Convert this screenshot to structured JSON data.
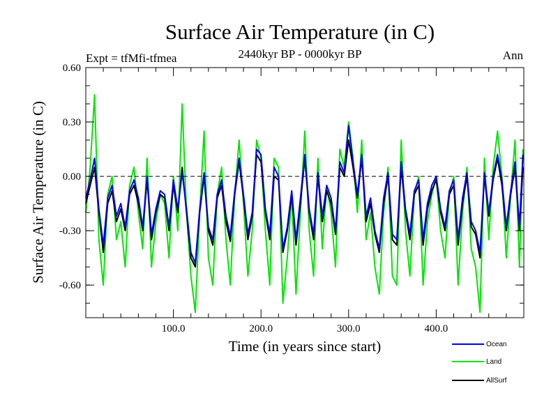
{
  "chart_data": {
    "type": "line",
    "title": "Surface Air Temperature (in C)",
    "subtitle": "2440kyr BP - 0000kyr BP",
    "left_note": "Expt = tfMfi-tfmea",
    "right_note": "Ann",
    "xlabel": "Time (in years since start)",
    "ylabel": "Surface Air Temperature (in C)",
    "xlim": [
      0,
      500
    ],
    "ylim": [
      -0.78,
      0.6
    ],
    "x_ticks": [
      100,
      200,
      300,
      400
    ],
    "x_tick_labels": [
      "100.0",
      "200.0",
      "300.0",
      "400.0"
    ],
    "y_ticks": [
      0.6,
      0.3,
      0.0,
      -0.3,
      -0.6
    ],
    "y_tick_labels": [
      "0.60",
      "0.30",
      "0.00",
      "-0.30",
      "-0.60"
    ],
    "reference_line": 0.0,
    "legend": [
      "Ocean",
      "Land",
      "AllSurf"
    ],
    "colors": {
      "Ocean": "#0000e6",
      "Land": "#00e600",
      "AllSurf": "#000000"
    },
    "series": [
      {
        "name": "Land",
        "x": [
          0,
          5,
          10,
          15,
          20,
          25,
          30,
          35,
          40,
          45,
          50,
          55,
          60,
          65,
          70,
          75,
          80,
          85,
          90,
          95,
          100,
          105,
          110,
          115,
          120,
          125,
          130,
          135,
          140,
          145,
          150,
          155,
          160,
          165,
          170,
          175,
          180,
          185,
          190,
          195,
          200,
          205,
          210,
          215,
          220,
          225,
          230,
          235,
          240,
          245,
          250,
          255,
          260,
          265,
          270,
          275,
          280,
          285,
          290,
          295,
          300,
          305,
          310,
          315,
          320,
          325,
          330,
          335,
          340,
          345,
          350,
          355,
          360,
          365,
          370,
          375,
          380,
          385,
          390,
          395,
          400,
          405,
          410,
          415,
          420,
          425,
          430,
          435,
          440,
          445,
          450,
          455,
          460,
          465,
          470,
          475,
          480,
          485,
          490,
          495,
          499
        ],
        "values": [
          -0.2,
          0.05,
          0.45,
          -0.35,
          -0.6,
          -0.1,
          0.0,
          -0.35,
          -0.25,
          -0.5,
          -0.05,
          0.05,
          -0.2,
          -0.4,
          0.1,
          -0.5,
          -0.25,
          -0.1,
          -0.15,
          -0.45,
          0.0,
          -0.3,
          0.4,
          -0.2,
          -0.55,
          -0.75,
          -0.2,
          0.25,
          -0.45,
          -0.6,
          -0.1,
          0.05,
          -0.35,
          -0.6,
          -0.1,
          0.2,
          -0.15,
          -0.55,
          -0.3,
          0.2,
          0.1,
          -0.3,
          -0.6,
          0.1,
          0.05,
          -0.7,
          -0.45,
          -0.1,
          -0.65,
          -0.2,
          0.25,
          -0.3,
          -0.55,
          0.1,
          -0.4,
          -0.05,
          -0.2,
          -0.5,
          0.15,
          0.05,
          0.3,
          0.1,
          -0.2,
          0.2,
          -0.35,
          -0.2,
          -0.5,
          -0.65,
          -0.2,
          0.05,
          -0.55,
          -0.6,
          0.2,
          -0.3,
          -0.55,
          -0.1,
          0.0,
          -0.6,
          -0.25,
          -0.1,
          0.0,
          -0.3,
          -0.45,
          -0.1,
          0.0,
          -0.6,
          -0.2,
          0.05,
          -0.4,
          -0.5,
          -0.75,
          0.1,
          -0.35,
          0.05,
          0.25,
          0.0,
          -0.45,
          -0.1,
          0.2,
          -0.5,
          0.15
        ]
      },
      {
        "name": "AllSurf",
        "x": [
          0,
          5,
          10,
          15,
          20,
          25,
          30,
          35,
          40,
          45,
          50,
          55,
          60,
          65,
          70,
          75,
          80,
          85,
          90,
          95,
          100,
          105,
          110,
          115,
          120,
          125,
          130,
          135,
          140,
          145,
          150,
          155,
          160,
          165,
          170,
          175,
          180,
          185,
          190,
          195,
          200,
          205,
          210,
          215,
          220,
          225,
          230,
          235,
          240,
          245,
          250,
          255,
          260,
          265,
          270,
          275,
          280,
          285,
          290,
          295,
          300,
          305,
          310,
          315,
          320,
          325,
          330,
          335,
          340,
          345,
          350,
          355,
          360,
          365,
          370,
          375,
          380,
          385,
          390,
          395,
          400,
          405,
          410,
          415,
          420,
          425,
          430,
          435,
          440,
          445,
          450,
          455,
          460,
          465,
          470,
          475,
          480,
          485,
          490,
          495,
          499
        ],
        "values": [
          -0.15,
          -0.05,
          0.05,
          -0.2,
          -0.42,
          -0.15,
          -0.08,
          -0.25,
          -0.18,
          -0.3,
          -0.1,
          -0.05,
          -0.15,
          -0.3,
          -0.02,
          -0.35,
          -0.2,
          -0.1,
          -0.12,
          -0.3,
          -0.05,
          -0.2,
          0.05,
          -0.2,
          -0.45,
          -0.5,
          -0.2,
          0.0,
          -0.3,
          -0.38,
          -0.12,
          -0.05,
          -0.25,
          -0.36,
          -0.1,
          0.08,
          -0.12,
          -0.35,
          -0.22,
          0.12,
          0.08,
          -0.2,
          -0.35,
          0.0,
          -0.02,
          -0.42,
          -0.3,
          -0.1,
          -0.38,
          -0.15,
          0.1,
          -0.2,
          -0.35,
          0.0,
          -0.25,
          -0.08,
          -0.15,
          -0.32,
          0.05,
          0.0,
          0.2,
          0.05,
          -0.12,
          0.1,
          -0.25,
          -0.15,
          -0.32,
          -0.42,
          -0.15,
          0.0,
          -0.35,
          -0.38,
          0.05,
          -0.2,
          -0.35,
          -0.1,
          -0.05,
          -0.38,
          -0.18,
          -0.08,
          -0.02,
          -0.2,
          -0.3,
          -0.1,
          -0.05,
          -0.38,
          -0.15,
          0.0,
          -0.28,
          -0.32,
          -0.45,
          0.0,
          -0.22,
          -0.02,
          0.1,
          -0.05,
          -0.3,
          -0.1,
          0.05,
          -0.3,
          0.05
        ]
      },
      {
        "name": "Ocean",
        "x": [
          0,
          5,
          10,
          15,
          20,
          25,
          30,
          35,
          40,
          45,
          50,
          55,
          60,
          65,
          70,
          75,
          80,
          85,
          90,
          95,
          100,
          105,
          110,
          115,
          120,
          125,
          130,
          135,
          140,
          145,
          150,
          155,
          160,
          165,
          170,
          175,
          180,
          185,
          190,
          195,
          200,
          205,
          210,
          215,
          220,
          225,
          230,
          235,
          240,
          245,
          250,
          255,
          260,
          265,
          270,
          275,
          280,
          285,
          290,
          295,
          300,
          305,
          310,
          315,
          320,
          325,
          330,
          335,
          340,
          345,
          350,
          355,
          360,
          365,
          370,
          375,
          380,
          385,
          390,
          395,
          400,
          405,
          410,
          415,
          420,
          425,
          430,
          435,
          440,
          445,
          450,
          455,
          460,
          465,
          470,
          475,
          480,
          485,
          490,
          495,
          499
        ],
        "values": [
          -0.12,
          -0.02,
          0.1,
          -0.18,
          -0.38,
          -0.12,
          -0.05,
          -0.22,
          -0.15,
          -0.28,
          -0.08,
          -0.02,
          -0.12,
          -0.28,
          0.0,
          -0.32,
          -0.18,
          -0.08,
          -0.1,
          -0.28,
          -0.02,
          -0.18,
          0.02,
          -0.18,
          -0.42,
          -0.48,
          -0.18,
          0.02,
          -0.28,
          -0.35,
          -0.1,
          -0.02,
          -0.22,
          -0.33,
          -0.08,
          0.1,
          -0.1,
          -0.32,
          -0.2,
          0.15,
          0.12,
          -0.18,
          -0.32,
          0.05,
          0.0,
          -0.4,
          -0.28,
          -0.08,
          -0.35,
          -0.12,
          0.12,
          -0.18,
          -0.32,
          0.02,
          -0.22,
          -0.05,
          -0.12,
          -0.3,
          0.08,
          0.02,
          0.28,
          0.08,
          -0.1,
          0.12,
          -0.22,
          -0.12,
          -0.3,
          -0.4,
          -0.12,
          0.02,
          -0.32,
          -0.35,
          0.08,
          -0.18,
          -0.32,
          -0.08,
          -0.02,
          -0.35,
          -0.15,
          -0.05,
          0.0,
          -0.18,
          -0.28,
          -0.08,
          -0.02,
          -0.35,
          -0.12,
          0.02,
          -0.25,
          -0.3,
          -0.42,
          0.02,
          -0.2,
          0.0,
          0.12,
          -0.02,
          -0.28,
          -0.08,
          0.08,
          -0.28,
          0.12
        ]
      }
    ]
  }
}
